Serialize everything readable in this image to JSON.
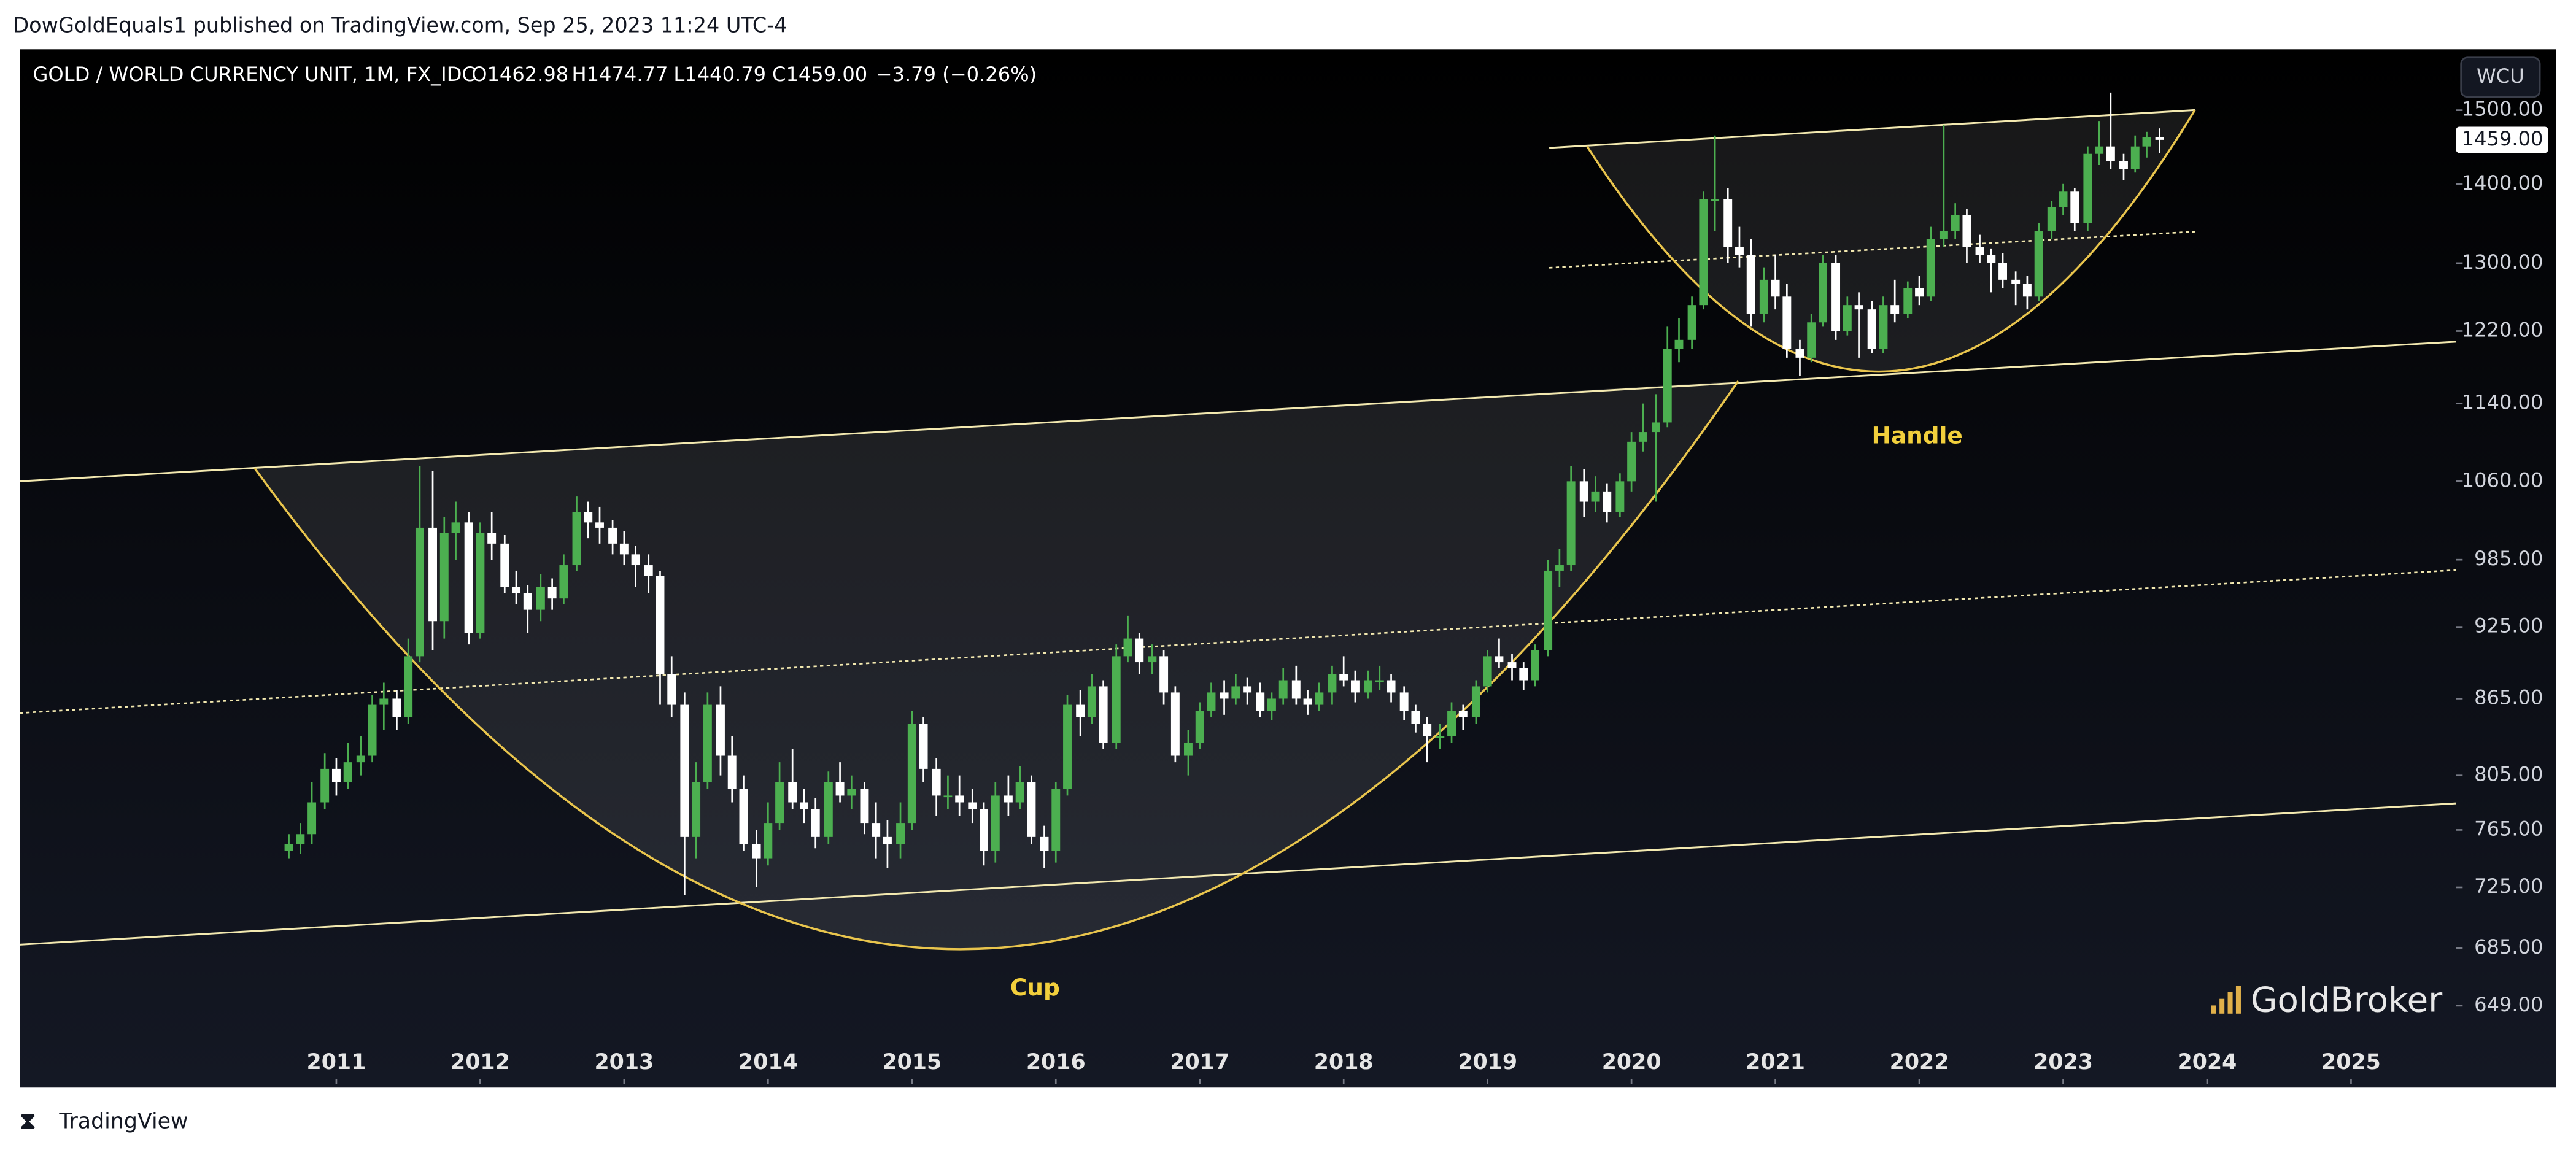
{
  "published": "DowGoldEquals1 published on TradingView.com, Sep 25, 2023 11:24 UTC-4",
  "currency_button": "WCU",
  "watermark": "GoldBroker",
  "footer": "TradingView",
  "annotations": [
    "Cup",
    "Handle"
  ],
  "chart_data": {
    "type": "candlestick",
    "title": "GOLD / WORLD CURRENCY UNIT, 1M, FX_IDC",
    "ohlc_labels": [
      "O1462.98",
      "H1474.77",
      "L1440.79",
      "C1459.00"
    ],
    "change_label": "−3.79 (−0.26%)",
    "last_price_label": "1459.00",
    "log_scale": true,
    "up_color": "#4caf50",
    "down_color": "#ffffff",
    "xlim": [
      2008.8,
      2025.73
    ],
    "xticks": [
      2011,
      2012,
      2013,
      2014,
      2015,
      2016,
      2017,
      2018,
      2019,
      2020,
      2021,
      2022,
      2023,
      2024,
      2025
    ],
    "ylim": [
      603,
      1588
    ],
    "yticks": [
      {
        "value": 649,
        "label": "649.00"
      },
      {
        "value": 685,
        "label": "685.00"
      },
      {
        "value": 725,
        "label": "725.00"
      },
      {
        "value": 765,
        "label": "765.00"
      },
      {
        "value": 805,
        "label": "805.00"
      },
      {
        "value": 865,
        "label": "865.00"
      },
      {
        "value": 925,
        "label": "925.00"
      },
      {
        "value": 985,
        "label": "985.00"
      },
      {
        "value": 1060,
        "label": "1060.00"
      },
      {
        "value": 1140,
        "label": "1140.00"
      },
      {
        "value": 1220,
        "label": "1220.00"
      },
      {
        "value": 1300,
        "label": "1300.00"
      },
      {
        "value": 1400,
        "label": "1400.00"
      },
      {
        "value": 1500,
        "label": "1500.00"
      }
    ],
    "x": [
      2010.67,
      2010.75,
      2010.83,
      2010.92,
      2011,
      2011.08,
      2011.17,
      2011.25,
      2011.33,
      2011.42,
      2011.5,
      2011.58,
      2011.67,
      2011.75,
      2011.83,
      2011.92,
      2012,
      2012.08,
      2012.17,
      2012.25,
      2012.33,
      2012.42,
      2012.5,
      2012.58,
      2012.67,
      2012.75,
      2012.83,
      2012.92,
      2013,
      2013.08,
      2013.17,
      2013.25,
      2013.33,
      2013.42,
      2013.5,
      2013.58,
      2013.67,
      2013.75,
      2013.83,
      2013.92,
      2014,
      2014.08,
      2014.17,
      2014.25,
      2014.33,
      2014.42,
      2014.5,
      2014.58,
      2014.67,
      2014.75,
      2014.83,
      2014.92,
      2015,
      2015.08,
      2015.17,
      2015.25,
      2015.33,
      2015.42,
      2015.5,
      2015.58,
      2015.67,
      2015.75,
      2015.83,
      2015.92,
      2016,
      2016.08,
      2016.17,
      2016.25,
      2016.33,
      2016.42,
      2016.5,
      2016.58,
      2016.67,
      2016.75,
      2016.83,
      2016.92,
      2017,
      2017.08,
      2017.17,
      2017.25,
      2017.33,
      2017.42,
      2017.5,
      2017.58,
      2017.67,
      2017.75,
      2017.83,
      2017.92,
      2018,
      2018.08,
      2018.17,
      2018.25,
      2018.33,
      2018.42,
      2018.5,
      2018.58,
      2018.67,
      2018.75,
      2018.83,
      2018.92,
      2019,
      2019.08,
      2019.17,
      2019.25,
      2019.33,
      2019.42,
      2019.5,
      2019.58,
      2019.67,
      2019.75,
      2019.83,
      2019.92,
      2020,
      2020.08,
      2020.17,
      2020.25,
      2020.33,
      2020.42,
      2020.5,
      2020.58,
      2020.67,
      2020.75,
      2020.83,
      2020.92,
      2021,
      2021.08,
      2021.17,
      2021.25,
      2021.33,
      2021.42,
      2021.5,
      2021.58,
      2021.67,
      2021.75,
      2021.83,
      2021.92,
      2022,
      2022.08,
      2022.17,
      2022.25,
      2022.33,
      2022.42,
      2022.5,
      2022.58,
      2022.67,
      2022.75,
      2022.83,
      2022.92,
      2023,
      2023.08,
      2023.17,
      2023.25,
      2023.33,
      2023.42,
      2023.5,
      2023.58,
      2023.67
    ],
    "candles": [
      [
        750,
        762,
        745,
        755
      ],
      [
        755,
        770,
        748,
        762
      ],
      [
        762,
        800,
        755,
        785
      ],
      [
        785,
        822,
        780,
        810
      ],
      [
        810,
        818,
        790,
        800
      ],
      [
        800,
        830,
        795,
        815
      ],
      [
        815,
        835,
        805,
        820
      ],
      [
        820,
        868,
        815,
        860
      ],
      [
        860,
        878,
        840,
        865
      ],
      [
        865,
        872,
        840,
        850
      ],
      [
        850,
        915,
        845,
        900
      ],
      [
        900,
        1075,
        895,
        1015
      ],
      [
        1015,
        1070,
        905,
        930
      ],
      [
        930,
        1025,
        915,
        1010
      ],
      [
        1010,
        1040,
        985,
        1020
      ],
      [
        1020,
        1030,
        910,
        920
      ],
      [
        920,
        1020,
        915,
        1010
      ],
      [
        1010,
        1030,
        985,
        1000
      ],
      [
        1000,
        1008,
        955,
        960
      ],
      [
        960,
        975,
        945,
        955
      ],
      [
        955,
        962,
        920,
        940
      ],
      [
        940,
        972,
        930,
        960
      ],
      [
        960,
        968,
        940,
        950
      ],
      [
        950,
        990,
        945,
        980
      ],
      [
        980,
        1045,
        975,
        1030
      ],
      [
        1030,
        1040,
        1005,
        1020
      ],
      [
        1020,
        1035,
        1000,
        1015
      ],
      [
        1015,
        1022,
        990,
        1000
      ],
      [
        1000,
        1012,
        980,
        990
      ],
      [
        990,
        998,
        960,
        980
      ],
      [
        980,
        990,
        955,
        970
      ],
      [
        970,
        975,
        860,
        885
      ],
      [
        885,
        900,
        850,
        860
      ],
      [
        860,
        870,
        720,
        760
      ],
      [
        760,
        815,
        745,
        800
      ],
      [
        800,
        870,
        795,
        860
      ],
      [
        860,
        875,
        805,
        820
      ],
      [
        820,
        835,
        785,
        795
      ],
      [
        795,
        805,
        750,
        755
      ],
      [
        755,
        765,
        725,
        745
      ],
      [
        745,
        785,
        740,
        770
      ],
      [
        770,
        815,
        765,
        800
      ],
      [
        800,
        825,
        780,
        785
      ],
      [
        785,
        795,
        770,
        780
      ],
      [
        780,
        788,
        752,
        760
      ],
      [
        760,
        808,
        755,
        800
      ],
      [
        800,
        815,
        785,
        790
      ],
      [
        790,
        805,
        780,
        795
      ],
      [
        795,
        800,
        762,
        770
      ],
      [
        770,
        785,
        745,
        760
      ],
      [
        760,
        772,
        738,
        755
      ],
      [
        755,
        785,
        745,
        770
      ],
      [
        770,
        855,
        765,
        845
      ],
      [
        845,
        850,
        800,
        810
      ],
      [
        810,
        818,
        775,
        790
      ],
      [
        790,
        805,
        780,
        790
      ],
      [
        790,
        805,
        775,
        785
      ],
      [
        785,
        795,
        770,
        780
      ],
      [
        780,
        785,
        740,
        750
      ],
      [
        750,
        800,
        742,
        790
      ],
      [
        790,
        805,
        775,
        785
      ],
      [
        785,
        812,
        780,
        800
      ],
      [
        800,
        805,
        755,
        760
      ],
      [
        760,
        768,
        738,
        750
      ],
      [
        750,
        800,
        742,
        795
      ],
      [
        795,
        868,
        790,
        860
      ],
      [
        860,
        872,
        835,
        850
      ],
      [
        850,
        885,
        845,
        875
      ],
      [
        875,
        880,
        825,
        830
      ],
      [
        830,
        910,
        825,
        900
      ],
      [
        900,
        935,
        895,
        915
      ],
      [
        915,
        920,
        885,
        895
      ],
      [
        895,
        910,
        885,
        900
      ],
      [
        900,
        905,
        860,
        870
      ],
      [
        870,
        875,
        815,
        820
      ],
      [
        820,
        840,
        805,
        830
      ],
      [
        830,
        862,
        825,
        855
      ],
      [
        855,
        878,
        850,
        870
      ],
      [
        870,
        880,
        852,
        865
      ],
      [
        865,
        885,
        860,
        875
      ],
      [
        875,
        882,
        860,
        870
      ],
      [
        870,
        878,
        850,
        855
      ],
      [
        855,
        870,
        848,
        865
      ],
      [
        865,
        890,
        860,
        880
      ],
      [
        880,
        892,
        860,
        865
      ],
      [
        865,
        872,
        852,
        860
      ],
      [
        860,
        878,
        855,
        870
      ],
      [
        870,
        892,
        860,
        885
      ],
      [
        885,
        900,
        875,
        880
      ],
      [
        880,
        888,
        862,
        870
      ],
      [
        870,
        888,
        865,
        880
      ],
      [
        880,
        892,
        872,
        880
      ],
      [
        880,
        885,
        862,
        870
      ],
      [
        870,
        875,
        848,
        855
      ],
      [
        855,
        860,
        838,
        845
      ],
      [
        845,
        850,
        815,
        835
      ],
      [
        835,
        845,
        825,
        835
      ],
      [
        835,
        862,
        830,
        855
      ],
      [
        855,
        860,
        840,
        850
      ],
      [
        850,
        880,
        845,
        875
      ],
      [
        875,
        905,
        870,
        900
      ],
      [
        900,
        915,
        890,
        895
      ],
      [
        895,
        902,
        880,
        890
      ],
      [
        890,
        895,
        872,
        880
      ],
      [
        880,
        910,
        875,
        905
      ],
      [
        905,
        985,
        900,
        975
      ],
      [
        975,
        995,
        960,
        980
      ],
      [
        980,
        1075,
        975,
        1060
      ],
      [
        1060,
        1072,
        1025,
        1040
      ],
      [
        1040,
        1065,
        1030,
        1050
      ],
      [
        1050,
        1058,
        1020,
        1030
      ],
      [
        1030,
        1068,
        1025,
        1060
      ],
      [
        1060,
        1110,
        1050,
        1100
      ],
      [
        1100,
        1140,
        1090,
        1110
      ],
      [
        1110,
        1150,
        1040,
        1120
      ],
      [
        1120,
        1225,
        1115,
        1200
      ],
      [
        1200,
        1235,
        1185,
        1210
      ],
      [
        1210,
        1260,
        1200,
        1250
      ],
      [
        1250,
        1390,
        1245,
        1380
      ],
      [
        1380,
        1465,
        1340,
        1380
      ],
      [
        1380,
        1395,
        1300,
        1320
      ],
      [
        1320,
        1345,
        1295,
        1310
      ],
      [
        1310,
        1330,
        1225,
        1240
      ],
      [
        1240,
        1295,
        1230,
        1280
      ],
      [
        1280,
        1310,
        1245,
        1260
      ],
      [
        1260,
        1275,
        1190,
        1200
      ],
      [
        1200,
        1210,
        1170,
        1190
      ],
      [
        1190,
        1240,
        1185,
        1230
      ],
      [
        1230,
        1310,
        1225,
        1300
      ],
      [
        1300,
        1310,
        1210,
        1220
      ],
      [
        1220,
        1260,
        1215,
        1250
      ],
      [
        1250,
        1265,
        1190,
        1245
      ],
      [
        1245,
        1255,
        1195,
        1200
      ],
      [
        1200,
        1260,
        1195,
        1250
      ],
      [
        1250,
        1280,
        1230,
        1240
      ],
      [
        1240,
        1278,
        1235,
        1270
      ],
      [
        1270,
        1285,
        1250,
        1260
      ],
      [
        1260,
        1345,
        1255,
        1330
      ],
      [
        1330,
        1480,
        1320,
        1340
      ],
      [
        1340,
        1375,
        1330,
        1360
      ],
      [
        1360,
        1368,
        1300,
        1320
      ],
      [
        1320,
        1335,
        1300,
        1310
      ],
      [
        1310,
        1318,
        1265,
        1300
      ],
      [
        1300,
        1312,
        1270,
        1280
      ],
      [
        1280,
        1290,
        1250,
        1275
      ],
      [
        1275,
        1285,
        1245,
        1260
      ],
      [
        1260,
        1350,
        1255,
        1340
      ],
      [
        1340,
        1378,
        1330,
        1370
      ],
      [
        1370,
        1400,
        1360,
        1390
      ],
      [
        1390,
        1395,
        1340,
        1350
      ],
      [
        1350,
        1450,
        1340,
        1440
      ],
      [
        1440,
        1485,
        1425,
        1450
      ],
      [
        1450,
        1525,
        1420,
        1430
      ],
      [
        1430,
        1440,
        1405,
        1420
      ],
      [
        1420,
        1465,
        1415,
        1450
      ],
      [
        1450,
        1470,
        1435,
        1462.98
      ],
      [
        1462.98,
        1474.77,
        1440.79,
        1459
      ]
    ]
  }
}
